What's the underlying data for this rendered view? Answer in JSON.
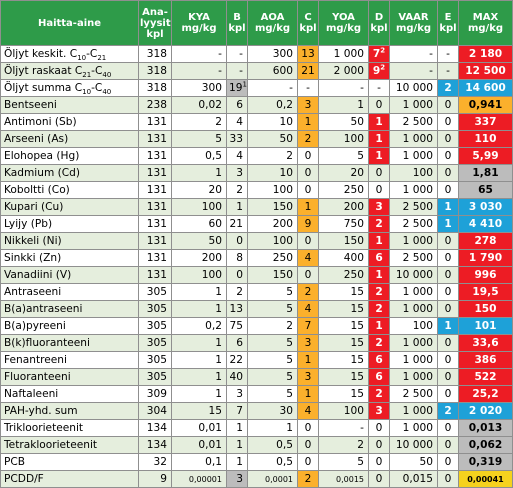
{
  "headers": {
    "name": "Haitta-aine",
    "n": [
      "Ana-",
      "lyysit",
      "kpl"
    ],
    "kya": [
      "KYA",
      "mg/kg"
    ],
    "b": [
      "B",
      "kpl"
    ],
    "aoa": [
      "AOA",
      "mg/kg"
    ],
    "c": [
      "C",
      "kpl"
    ],
    "yoa": [
      "YOA",
      "mg/kg"
    ],
    "d": [
      "D",
      "kpl"
    ],
    "vaar": [
      "VAAR",
      "mg/kg"
    ],
    "e": [
      "E",
      "kpl"
    ],
    "max": [
      "MAX",
      "mg/kg"
    ]
  },
  "rows": [
    {
      "pre": "Öljyt keskit. C",
      "s1": "10",
      "mid": "-C",
      "s2": "21",
      "n": "318",
      "kya": "-",
      "b": "-",
      "aoa": "300",
      "c": "13",
      "yoa": "1 000",
      "d": "7",
      "dsup": "2",
      "vaar": "-",
      "e": "-",
      "max": "2 180",
      "cls": {
        "c": "c-orange",
        "d": "c-red",
        "max": "c-red"
      }
    },
    {
      "pre": "Öljyt raskaat C",
      "s1": "21",
      "mid": "-C",
      "s2": "40",
      "n": "318",
      "kya": "-",
      "b": "-",
      "aoa": "600",
      "c": "21",
      "yoa": "2 000",
      "d": "9",
      "dsup": "2",
      "vaar": "-",
      "e": "-",
      "max": "12 500",
      "cls": {
        "c": "c-orange",
        "d": "c-red",
        "max": "c-red"
      }
    },
    {
      "pre": "Öljyt summa C",
      "s1": "10",
      "mid": "-C",
      "s2": "40",
      "n": "318",
      "kya": "300",
      "b": "19",
      "bsup": "1",
      "aoa": "-",
      "c": "-",
      "yoa": "-",
      "d": "-",
      "vaar": "10 000",
      "e": "2",
      "max": "14 600",
      "cls": {
        "b": "c-grey",
        "e": "c-blue",
        "max": "c-blue"
      }
    },
    {
      "name": "Bentseeni",
      "n": "238",
      "kya": "0,02",
      "b": "6",
      "aoa": "0,2",
      "c": "3",
      "yoa": "1",
      "d": "0",
      "vaar": "1 000",
      "e": "0",
      "max": "0,941",
      "cls": {
        "c": "c-orange",
        "max": "c-orange"
      }
    },
    {
      "name": "Antimoni (Sb)",
      "n": "131",
      "kya": "2",
      "b": "4",
      "aoa": "10",
      "c": "1",
      "yoa": "50",
      "d": "1",
      "vaar": "2 500",
      "e": "0",
      "max": "337",
      "cls": {
        "c": "c-orange",
        "d": "c-red",
        "max": "c-red"
      }
    },
    {
      "name": "Arseeni (As)",
      "n": "131",
      "kya": "5",
      "b": "33",
      "aoa": "50",
      "c": "2",
      "yoa": "100",
      "d": "1",
      "vaar": "1 000",
      "e": "0",
      "max": "110",
      "cls": {
        "c": "c-orange",
        "d": "c-red",
        "max": "c-red"
      }
    },
    {
      "name": "Elohopea (Hg)",
      "n": "131",
      "kya": "0,5",
      "b": "4",
      "aoa": "2",
      "c": "0",
      "yoa": "5",
      "d": "1",
      "vaar": "1 000",
      "e": "0",
      "max": "5,99",
      "cls": {
        "d": "c-red",
        "max": "c-red"
      }
    },
    {
      "name": "Kadmium (Cd)",
      "n": "131",
      "kya": "1",
      "b": "3",
      "aoa": "10",
      "c": "0",
      "yoa": "20",
      "d": "0",
      "vaar": "100",
      "e": "0",
      "max": "1,81",
      "cls": {
        "max": "c-grey"
      }
    },
    {
      "name": "Koboltti (Co)",
      "n": "131",
      "kya": "20",
      "b": "2",
      "aoa": "100",
      "c": "0",
      "yoa": "250",
      "d": "0",
      "vaar": "1 000",
      "e": "0",
      "max": "65",
      "cls": {
        "max": "c-grey"
      }
    },
    {
      "name": "Kupari (Cu)",
      "n": "131",
      "kya": "100",
      "b": "1",
      "aoa": "150",
      "c": "1",
      "yoa": "200",
      "d": "3",
      "vaar": "2 500",
      "e": "1",
      "max": "3 030",
      "cls": {
        "c": "c-orange",
        "d": "c-red",
        "e": "c-blue",
        "max": "c-blue"
      }
    },
    {
      "name": "Lyijy (Pb)",
      "n": "131",
      "kya": "60",
      "b": "21",
      "aoa": "200",
      "c": "9",
      "yoa": "750",
      "d": "2",
      "vaar": "2 500",
      "e": "1",
      "max": "4 410",
      "cls": {
        "c": "c-orange",
        "d": "c-red",
        "e": "c-blue",
        "max": "c-blue"
      }
    },
    {
      "name": "Nikkeli (Ni)",
      "n": "131",
      "kya": "50",
      "b": "0",
      "aoa": "100",
      "c": "0",
      "yoa": "150",
      "d": "1",
      "vaar": "1 000",
      "e": "0",
      "max": "278",
      "cls": {
        "d": "c-red",
        "max": "c-red"
      }
    },
    {
      "name": "Sinkki (Zn)",
      "n": "131",
      "kya": "200",
      "b": "8",
      "aoa": "250",
      "c": "4",
      "yoa": "400",
      "d": "6",
      "vaar": "2 500",
      "e": "0",
      "max": "1 790",
      "cls": {
        "c": "c-orange",
        "d": "c-red",
        "max": "c-red"
      }
    },
    {
      "name": "Vanadiini (V)",
      "n": "131",
      "kya": "100",
      "b": "0",
      "aoa": "150",
      "c": "0",
      "yoa": "250",
      "d": "1",
      "vaar": "10 000",
      "e": "0",
      "max": "996",
      "cls": {
        "d": "c-red",
        "max": "c-red"
      }
    },
    {
      "name": "Antraseeni",
      "n": "305",
      "kya": "1",
      "b": "2",
      "aoa": "5",
      "c": "2",
      "yoa": "15",
      "d": "2",
      "vaar": "1 000",
      "e": "0",
      "max": "19,5",
      "cls": {
        "c": "c-orange",
        "d": "c-red",
        "max": "c-red"
      }
    },
    {
      "name": "B(a)antraseeni",
      "n": "305",
      "kya": "1",
      "b": "13",
      "aoa": "5",
      "c": "4",
      "yoa": "15",
      "d": "2",
      "vaar": "1 000",
      "e": "0",
      "max": "150",
      "cls": {
        "c": "c-orange",
        "d": "c-red",
        "max": "c-red"
      }
    },
    {
      "name": "B(a)pyreeni",
      "n": "305",
      "kya": "0,2",
      "b": "75",
      "aoa": "2",
      "c": "7",
      "yoa": "15",
      "d": "1",
      "vaar": "100",
      "e": "1",
      "max": "101",
      "cls": {
        "c": "c-orange",
        "d": "c-red",
        "e": "c-blue",
        "max": "c-blue"
      }
    },
    {
      "name": "B(k)fluoranteeni",
      "n": "305",
      "kya": "1",
      "b": "6",
      "aoa": "5",
      "c": "3",
      "yoa": "15",
      "d": "2",
      "vaar": "1 000",
      "e": "0",
      "max": "33,6",
      "cls": {
        "c": "c-orange",
        "d": "c-red",
        "max": "c-red"
      }
    },
    {
      "name": "Fenantreeni",
      "n": "305",
      "kya": "1",
      "b": "22",
      "aoa": "5",
      "c": "1",
      "yoa": "15",
      "d": "6",
      "vaar": "1 000",
      "e": "0",
      "max": "386",
      "cls": {
        "c": "c-orange",
        "d": "c-red",
        "max": "c-red"
      }
    },
    {
      "name": "Fluoranteeni",
      "n": "305",
      "kya": "1",
      "b": "40",
      "aoa": "5",
      "c": "3",
      "yoa": "15",
      "d": "6",
      "vaar": "1 000",
      "e": "0",
      "max": "522",
      "cls": {
        "c": "c-orange",
        "d": "c-red",
        "max": "c-red"
      }
    },
    {
      "name": "Naftaleeni",
      "n": "309",
      "kya": "1",
      "b": "3",
      "aoa": "5",
      "c": "1",
      "yoa": "15",
      "d": "2",
      "vaar": "2 500",
      "e": "0",
      "max": "25,2",
      "cls": {
        "c": "c-orange",
        "d": "c-red",
        "max": "c-red"
      }
    },
    {
      "name": "PAH-yhd. sum",
      "n": "304",
      "kya": "15",
      "b": "7",
      "aoa": "30",
      "c": "4",
      "yoa": "100",
      "d": "3",
      "vaar": "1 000",
      "e": "2",
      "max": "2 020",
      "cls": {
        "c": "c-orange",
        "d": "c-red",
        "e": "c-blue",
        "max": "c-blue"
      }
    },
    {
      "name": "Trikloorieteenit",
      "n": "134",
      "kya": "0,01",
      "b": "1",
      "aoa": "1",
      "c": "0",
      "yoa": "-",
      "d": "0",
      "vaar": "1 000",
      "e": "0",
      "max": "0,013",
      "cls": {
        "max": "c-grey"
      }
    },
    {
      "name": "Tetrakloorieteenit",
      "n": "134",
      "kya": "0,01",
      "b": "1",
      "aoa": "0,5",
      "c": "0",
      "yoa": "2",
      "d": "0",
      "vaar": "10 000",
      "e": "0",
      "max": "0,062",
      "cls": {
        "max": "c-grey"
      }
    },
    {
      "name": "PCB",
      "n": "32",
      "kya": "0,1",
      "b": "1",
      "aoa": "0,5",
      "c": "0",
      "yoa": "5",
      "d": "0",
      "vaar": "50",
      "e": "0",
      "max": "0,319",
      "cls": {
        "max": "c-grey"
      }
    },
    {
      "name": "PCDD/F",
      "n": "9",
      "kya": "0,00001",
      "b": "3",
      "aoa": "0,0001",
      "c": "2",
      "yoa": "0,0015",
      "d": "0",
      "vaar": "0,015",
      "e": "0",
      "max": "0,00041",
      "cls": {
        "b": "c-grey",
        "c": "c-orange",
        "max": "c-yellow"
      },
      "small": true
    }
  ]
}
